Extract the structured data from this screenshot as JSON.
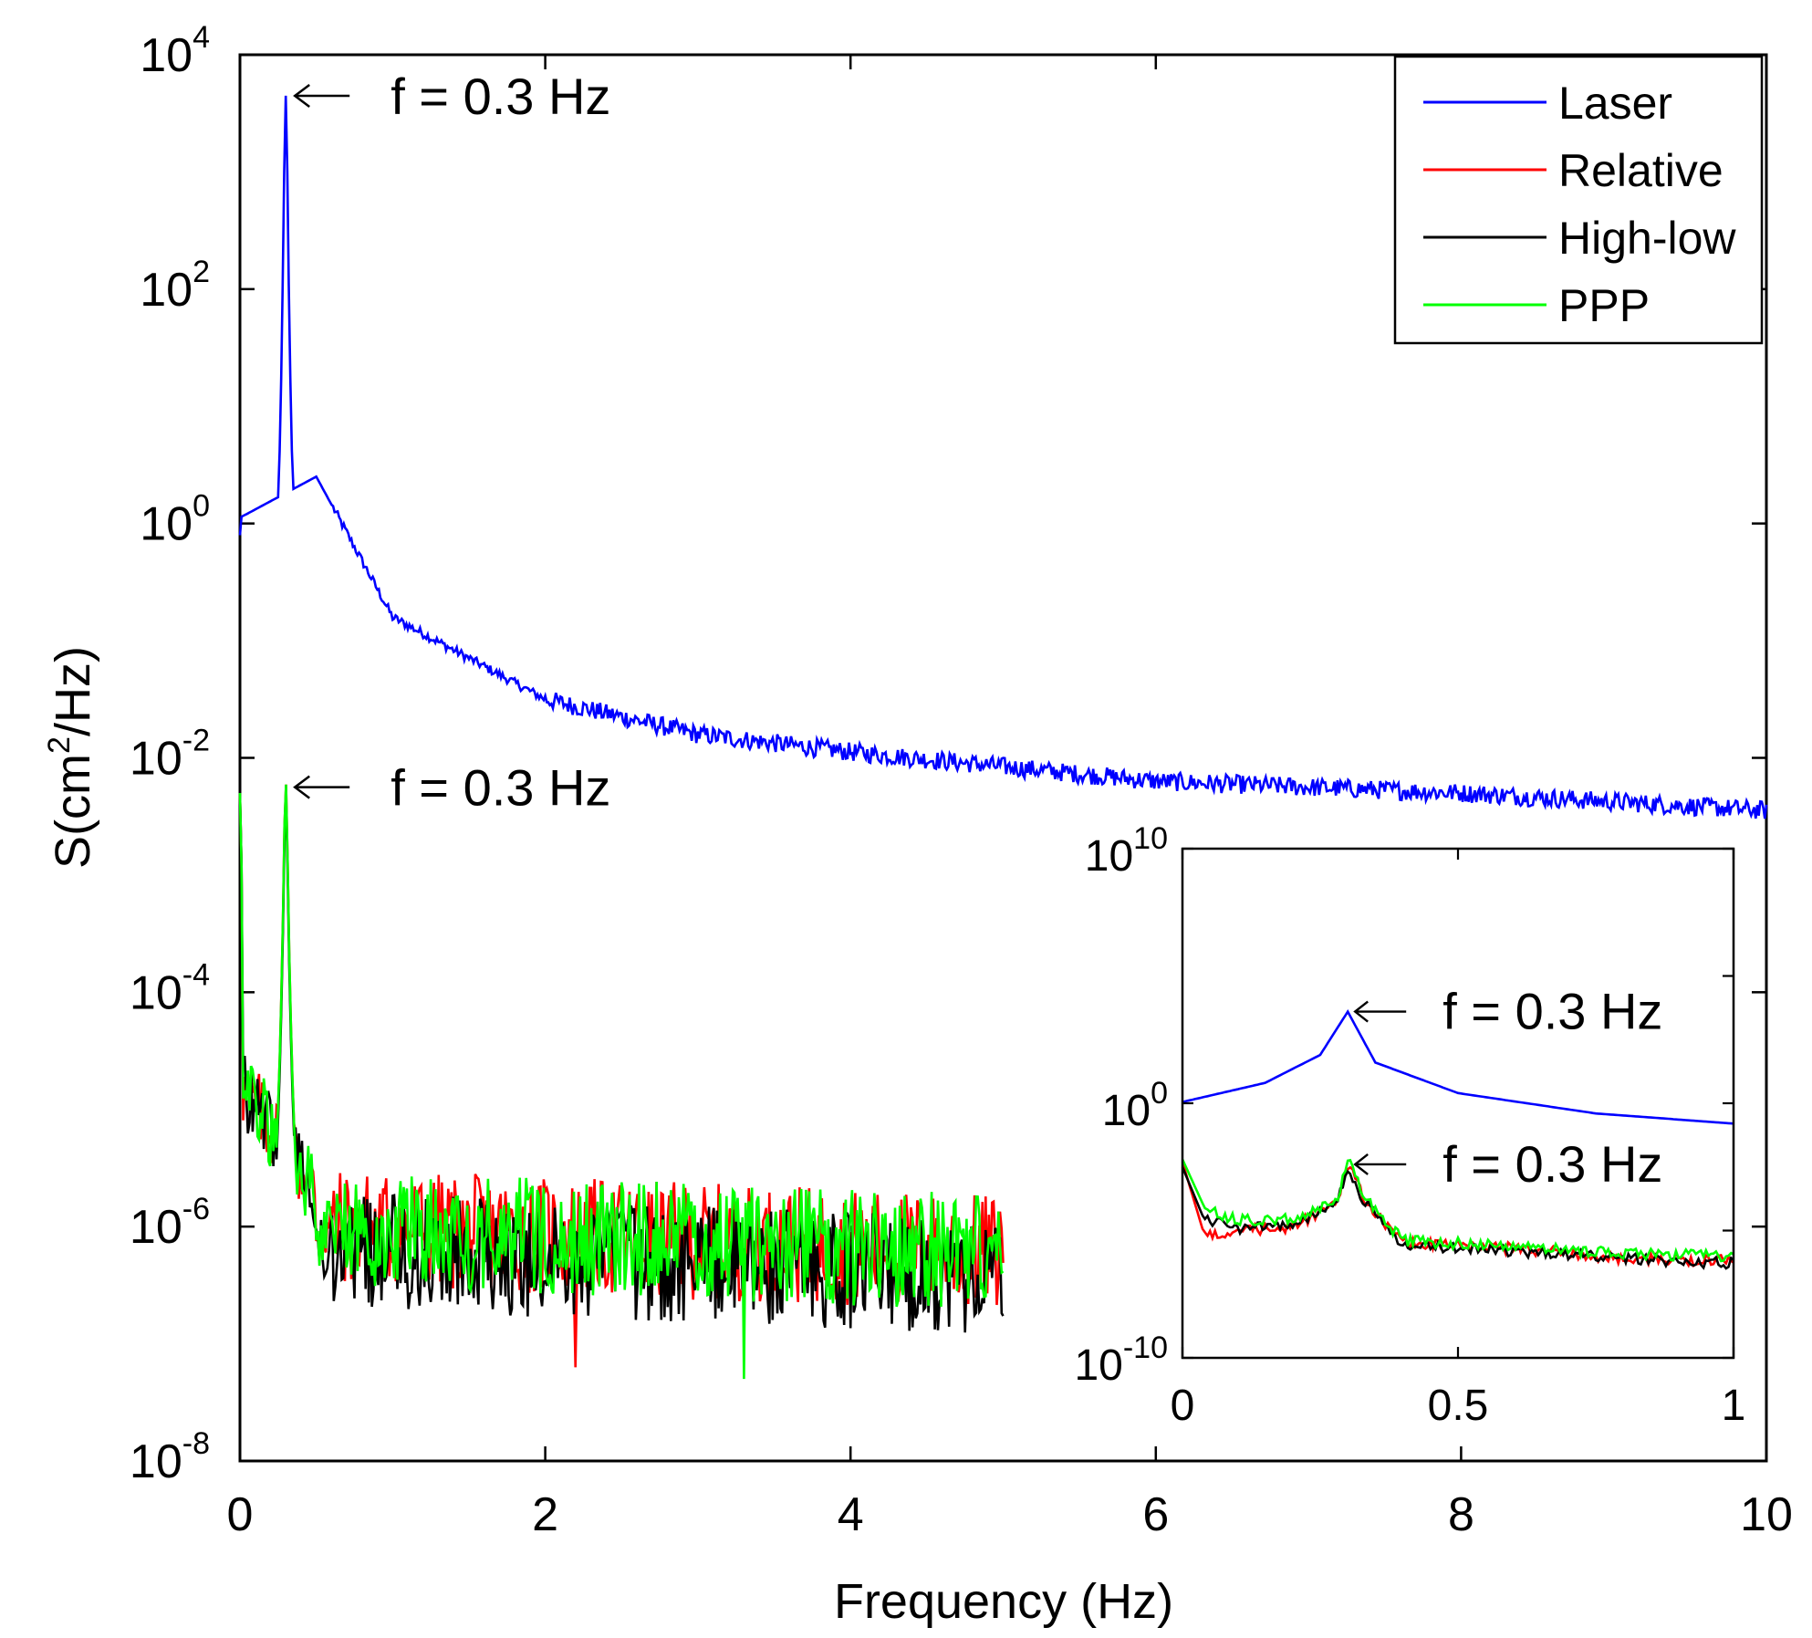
{
  "chart_data": {
    "type": "line",
    "xlabel": "Frequency (Hz)",
    "ylabel": "S(cm²/Hz)",
    "ylabel_parts": {
      "pre": "S(cm",
      "sup": "2",
      "post": "/Hz)"
    },
    "xlim": [
      0,
      10
    ],
    "ylim_log10": [
      -8,
      4
    ],
    "x_ticks": [
      {
        "value": 0,
        "label": "0"
      },
      {
        "value": 2,
        "label": "2"
      },
      {
        "value": 4,
        "label": "4"
      },
      {
        "value": 6,
        "label": "6"
      },
      {
        "value": 8,
        "label": "8"
      },
      {
        "value": 10,
        "label": "10"
      }
    ],
    "y_ticks": [
      {
        "exp": 4,
        "base": "10",
        "sup": "4"
      },
      {
        "exp": 2,
        "base": "10",
        "sup": "2"
      },
      {
        "exp": 0,
        "base": "10",
        "sup": "0"
      },
      {
        "exp": -2,
        "base": "10",
        "sup": "-2"
      },
      {
        "exp": -4,
        "base": "10",
        "sup": "-4"
      },
      {
        "exp": -6,
        "base": "10",
        "sup": "-6"
      },
      {
        "exp": -8,
        "base": "10",
        "sup": "-8"
      }
    ],
    "legend": {
      "position": "top-right",
      "entries": [
        {
          "name": "Laser",
          "color": "#0000ff"
        },
        {
          "name": "Relative",
          "color": "#ff0000"
        },
        {
          "name": "High-low",
          "color": "#000000"
        },
        {
          "name": "PPP",
          "color": "#00ff00"
        }
      ]
    },
    "annotations": [
      {
        "text": "f = 0.3 Hz",
        "x": 0.3,
        "y_log10": 3.65
      },
      {
        "text": "f = 0.3 Hz",
        "x": 0.3,
        "y_log10": -2.25
      }
    ],
    "series": [
      {
        "name": "Laser",
        "color": "#0000ff",
        "x_range": [
          0,
          10
        ],
        "peak": {
          "x": 0.3,
          "y_log10": 3.65
        },
        "start_y_log10": 0.05,
        "decay_points": [
          {
            "x": 0.5,
            "y_log10": 0.4
          },
          {
            "x": 1.0,
            "y_log10": -0.8
          },
          {
            "x": 2.0,
            "y_log10": -1.5
          },
          {
            "x": 3.0,
            "y_log10": -1.8
          },
          {
            "x": 4.0,
            "y_log10": -1.95
          },
          {
            "x": 6.0,
            "y_log10": -2.2
          },
          {
            "x": 8.0,
            "y_log10": -2.3
          },
          {
            "x": 10.0,
            "y_log10": -2.45
          }
        ],
        "noise_amplitude_log10": 0.08
      },
      {
        "name": "Relative",
        "color": "#ff0000",
        "x_range": [
          0,
          5
        ],
        "peak": {
          "x": 0.3,
          "y_log10": -2.2
        },
        "noise_floor_log10": -6.0,
        "noise_amplitude_log10": 0.5,
        "min_dip": {
          "x": 2.2,
          "y_log10": -7.2
        }
      },
      {
        "name": "High-low",
        "color": "#000000",
        "x_range": [
          0,
          5
        ],
        "peak": {
          "x": 0.3,
          "y_log10": -2.3
        },
        "noise_floor_log10": -6.2,
        "noise_amplitude_log10": 0.5
      },
      {
        "name": "PPP",
        "color": "#00ff00",
        "x_range": [
          0,
          5
        ],
        "peak": {
          "x": 0.3,
          "y_log10": -2.2
        },
        "noise_floor_log10": -6.0,
        "noise_amplitude_log10": 0.5,
        "min_dip": {
          "x": 3.3,
          "y_log10": -7.3
        }
      }
    ],
    "inset": {
      "xlim": [
        0,
        1
      ],
      "ylim_log10": [
        -10,
        10
      ],
      "x_ticks": [
        {
          "value": 0,
          "label": "0"
        },
        {
          "value": 0.5,
          "label": "0.5"
        },
        {
          "value": 1,
          "label": "1"
        }
      ],
      "y_ticks": [
        {
          "exp": 10,
          "base": "10",
          "sup": "10"
        },
        {
          "exp": 0,
          "base": "10",
          "sup": "0"
        },
        {
          "exp": -10,
          "base": "10",
          "sup": "-10"
        }
      ],
      "annotations": [
        {
          "text": "f = 0.3 Hz",
          "x": 0.3,
          "y_log10": 3.6
        },
        {
          "text": "f = 0.3 Hz",
          "x": 0.3,
          "y_log10": -2.4
        }
      ],
      "series": [
        {
          "name": "Laser",
          "color": "#0000ff",
          "points": [
            [
              0,
              0.05
            ],
            [
              0.05,
              0.3
            ],
            [
              0.15,
              0.8
            ],
            [
              0.25,
              1.9
            ],
            [
              0.3,
              3.6
            ],
            [
              0.35,
              1.6
            ],
            [
              0.5,
              0.4
            ],
            [
              0.75,
              -0.4
            ],
            [
              1.0,
              -0.8
            ]
          ]
        },
        {
          "name": "Relative",
          "color": "#ff0000",
          "points": [
            [
              0,
              -2.3
            ],
            [
              0.04,
              -5.2
            ],
            [
              0.1,
              -5.0
            ],
            [
              0.2,
              -4.9
            ],
            [
              0.28,
              -3.9
            ],
            [
              0.3,
              -2.4
            ],
            [
              0.33,
              -3.8
            ],
            [
              0.4,
              -5.5
            ],
            [
              0.6,
              -5.7
            ],
            [
              0.8,
              -6.1
            ],
            [
              1.0,
              -6.2
            ]
          ]
        },
        {
          "name": "High-low",
          "color": "#000000",
          "points": [
            [
              0,
              -2.5
            ],
            [
              0.04,
              -4.6
            ],
            [
              0.1,
              -4.9
            ],
            [
              0.2,
              -4.8
            ],
            [
              0.28,
              -3.9
            ],
            [
              0.3,
              -2.5
            ],
            [
              0.33,
              -3.9
            ],
            [
              0.4,
              -5.6
            ],
            [
              0.6,
              -5.8
            ],
            [
              0.8,
              -6.1
            ],
            [
              1.0,
              -6.3
            ]
          ]
        },
        {
          "name": "PPP",
          "color": "#00ff00",
          "points": [
            [
              0,
              -2.2
            ],
            [
              0.04,
              -4.1
            ],
            [
              0.1,
              -4.6
            ],
            [
              0.2,
              -4.5
            ],
            [
              0.28,
              -3.8
            ],
            [
              0.3,
              -2.2
            ],
            [
              0.33,
              -3.7
            ],
            [
              0.4,
              -5.4
            ],
            [
              0.6,
              -5.6
            ],
            [
              0.8,
              -5.9
            ],
            [
              1.0,
              -6.0
            ]
          ]
        }
      ]
    }
  }
}
